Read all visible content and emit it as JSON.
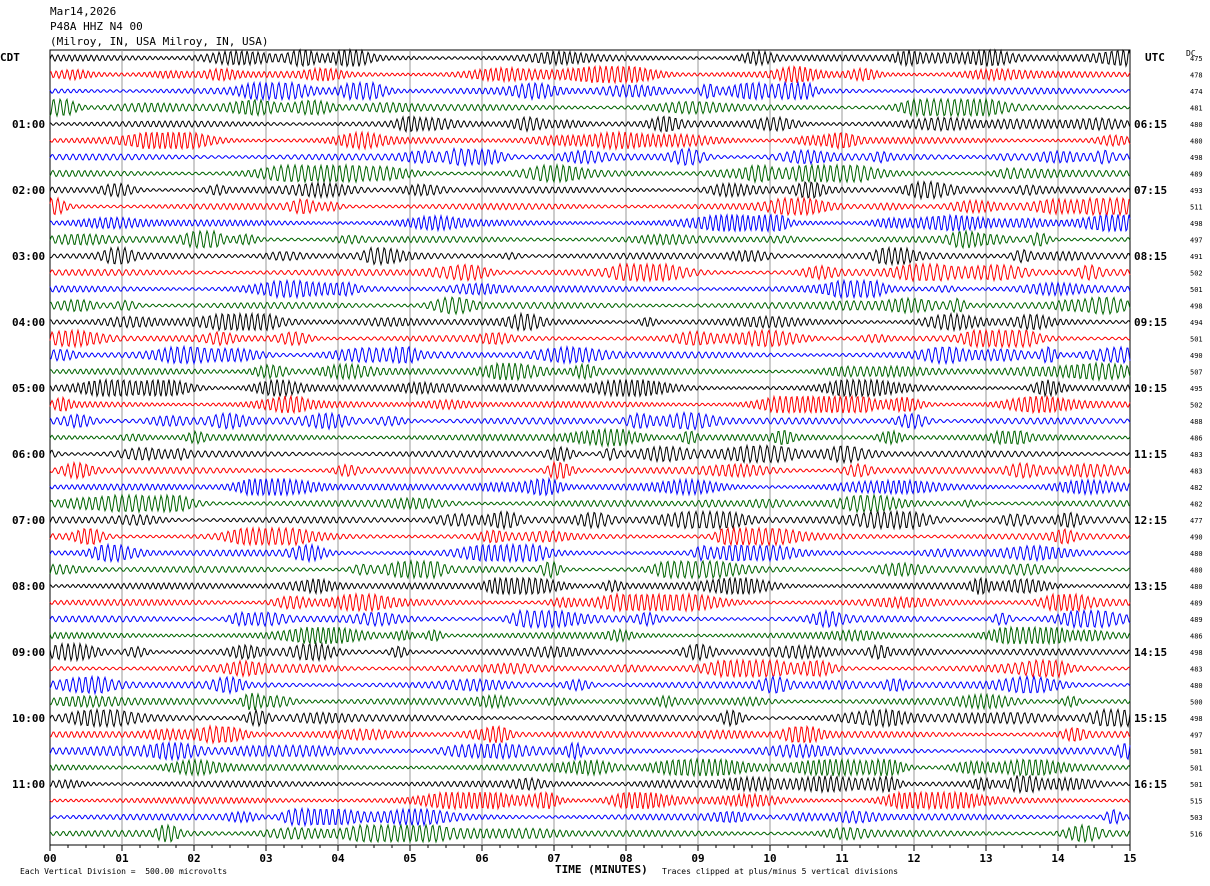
{
  "header": {
    "date": "Mar14,2026",
    "station": "P48A HHZ N4 00",
    "location": "(Milroy, IN, USA Milroy, IN, USA)"
  },
  "left_axis_title": "CDT",
  "right_axis_title": "UTC",
  "dc_title": "DC",
  "footer": {
    "scale_note": "Each Vertical Division =  500.00 microvolts",
    "xlabel": "TIME (MINUTES)",
    "clip_note": "Traces clipped at plus/minus 5 vertical divisions"
  },
  "chart_data": {
    "type": "line",
    "title": "",
    "xlabel": "TIME (MINUTES)",
    "ylabel": "",
    "xlim": [
      0,
      15
    ],
    "x_ticks": [
      "00",
      "01",
      "02",
      "03",
      "04",
      "05",
      "06",
      "07",
      "08",
      "09",
      "10",
      "11",
      "12",
      "13",
      "14",
      "15"
    ],
    "left_time_labels": [
      "01:00",
      "02:00",
      "03:00",
      "04:00",
      "05:00",
      "06:00",
      "07:00",
      "08:00",
      "09:00",
      "10:00",
      "11:00"
    ],
    "right_time_labels": [
      "06:15",
      "07:15",
      "08:15",
      "09:15",
      "10:15",
      "11:15",
      "12:15",
      "13:15",
      "14:15",
      "15:15",
      "16:15"
    ],
    "label_every_n_traces": 4,
    "first_labeled_trace": 4,
    "trace_colors": [
      "#000000",
      "#ff0000",
      "#0000ff",
      "#006400"
    ],
    "dc_offsets": [
      475,
      478,
      474,
      481,
      480,
      480,
      498,
      489,
      493,
      511,
      498,
      497,
      491,
      502,
      501,
      498,
      494,
      501,
      490,
      507,
      495,
      502,
      488,
      486,
      483,
      483,
      482,
      482,
      477,
      490,
      480,
      480,
      480,
      489,
      489,
      486,
      498,
      483,
      480,
      500,
      498,
      497,
      501,
      501,
      501,
      515,
      503,
      516
    ],
    "grid": true
  }
}
